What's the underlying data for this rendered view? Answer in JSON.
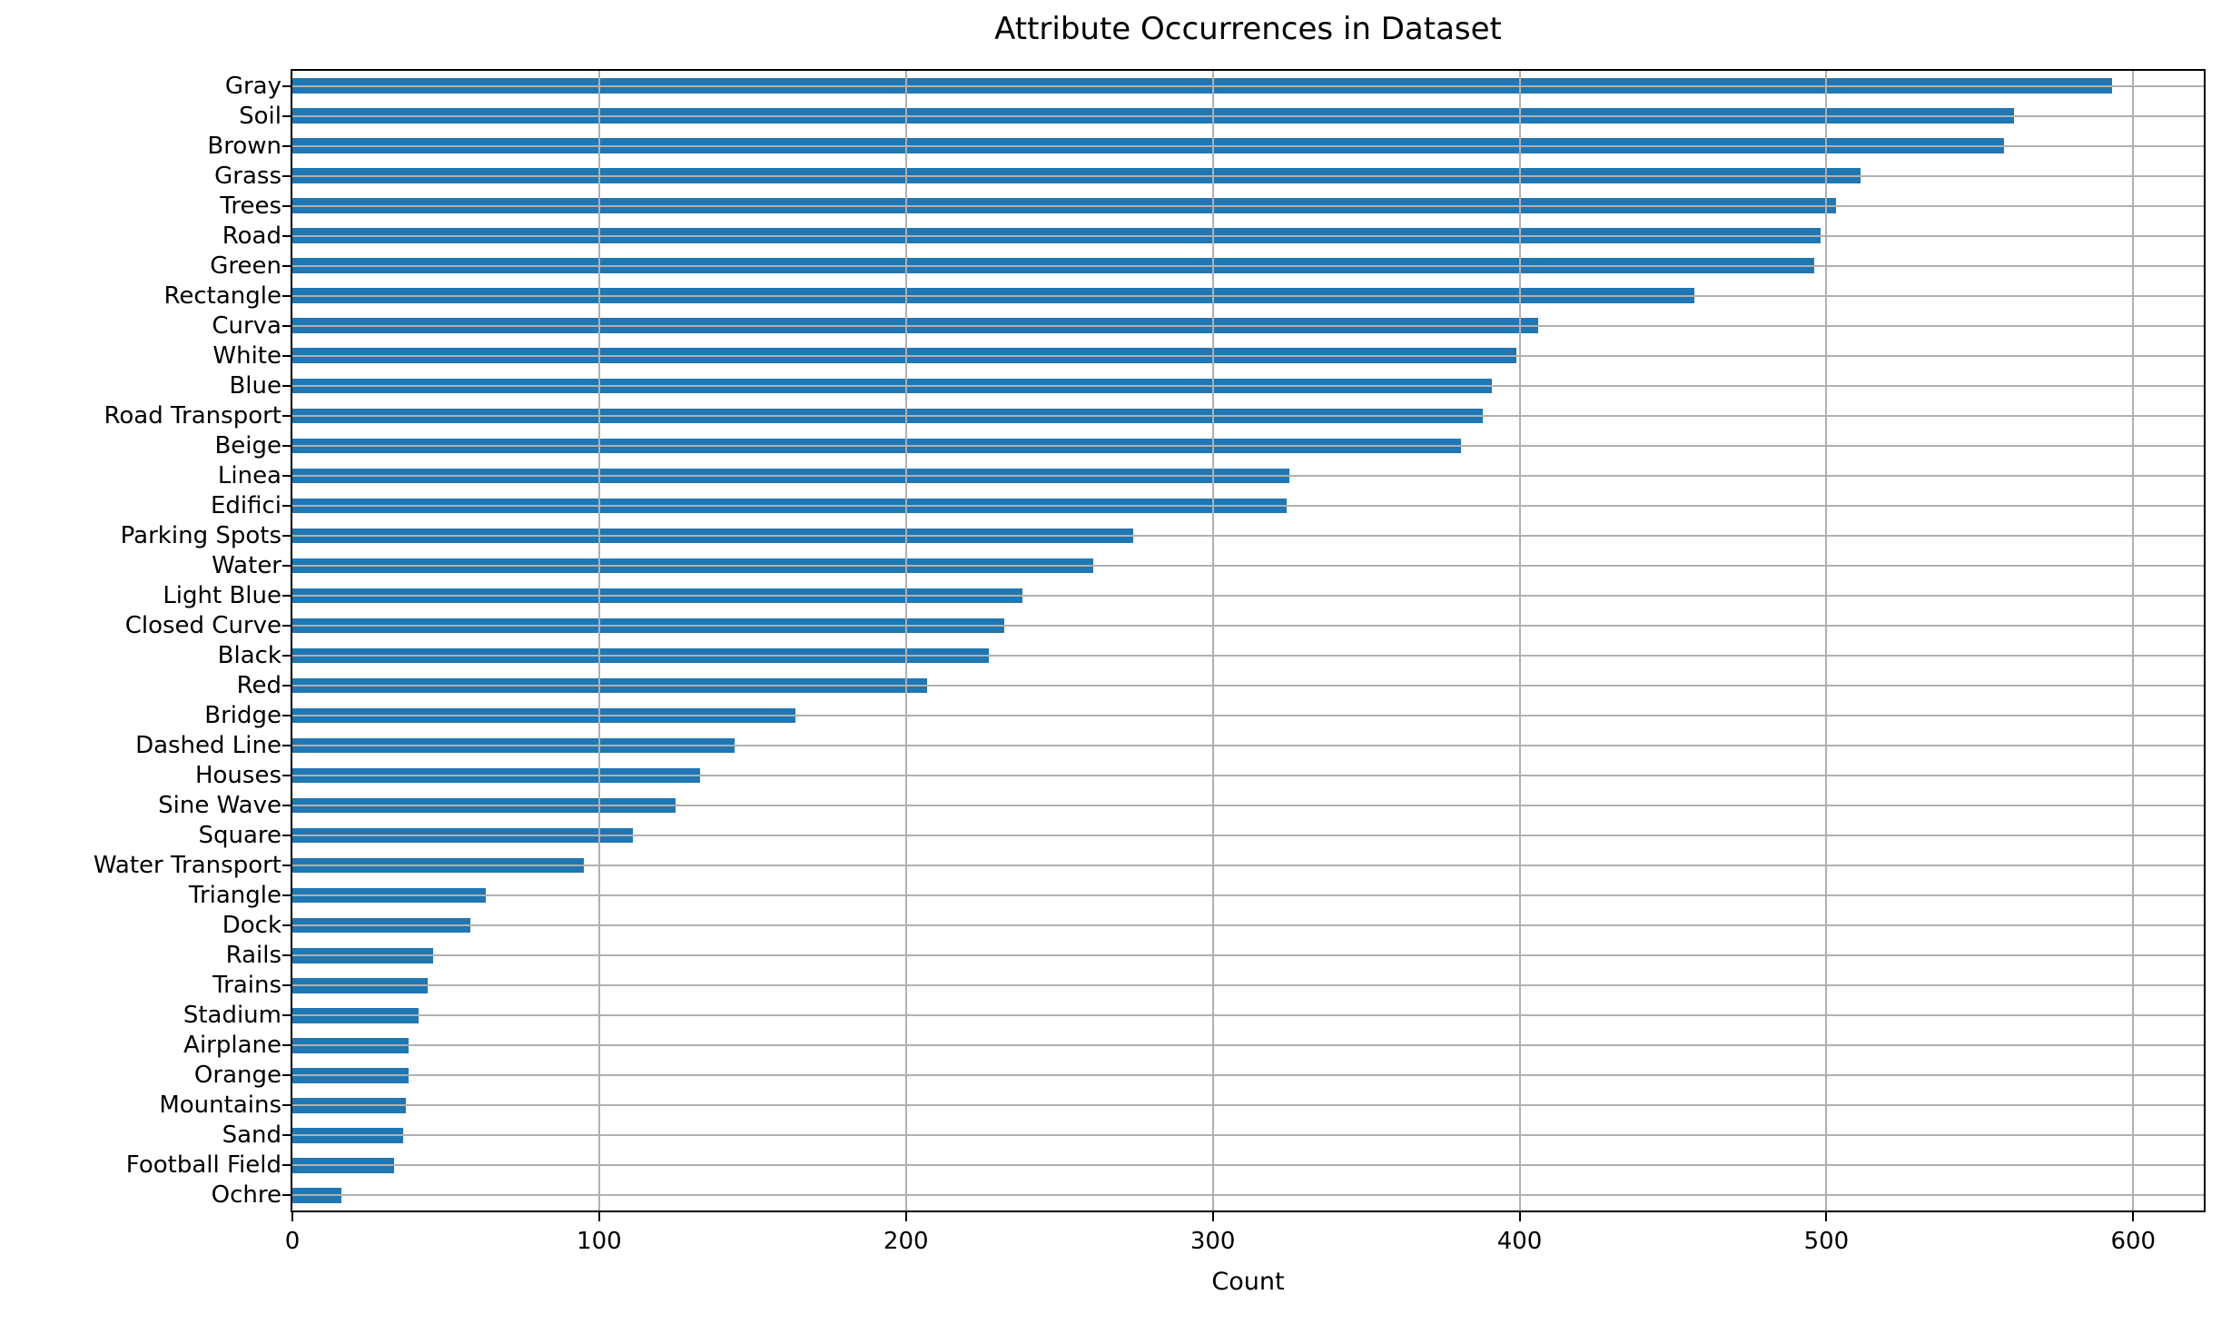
{
  "chart_data": {
    "type": "bar",
    "orientation": "horizontal",
    "title": "Attribute Occurrences in Dataset",
    "xlabel": "Count",
    "ylabel": "",
    "categories": [
      "Gray",
      "Soil",
      "Brown",
      "Grass",
      "Trees",
      "Road",
      "Green",
      "Rectangle",
      "Curva",
      "White",
      "Blue",
      "Road Transport",
      "Beige",
      "Linea",
      "Edifici",
      "Parking Spots",
      "Water",
      "Light Blue",
      "Closed Curve",
      "Black",
      "Red",
      "Bridge",
      "Dashed Line",
      "Houses",
      "Sine Wave",
      "Square",
      "Water Transport",
      "Triangle",
      "Dock",
      "Rails",
      "Trains",
      "Stadium",
      "Airplane",
      "Orange",
      "Mountains",
      "Sand",
      "Football Field",
      "Ochre"
    ],
    "values": [
      593,
      561,
      558,
      511,
      503,
      498,
      496,
      457,
      406,
      399,
      391,
      388,
      381,
      325,
      324,
      274,
      261,
      238,
      232,
      227,
      207,
      164,
      144,
      133,
      125,
      111,
      95,
      63,
      58,
      46,
      44,
      41,
      38,
      38,
      37,
      36,
      33,
      16
    ],
    "xlim": [
      0,
      623
    ],
    "xticks": [
      0,
      100,
      200,
      300,
      400,
      500,
      600
    ],
    "grid": true,
    "legend": false,
    "bar_color": "#1f77b4",
    "grid_color": "#b0b0b0",
    "spine_color": "#000000",
    "text_color": "#000000",
    "background_color": "#ffffff"
  }
}
